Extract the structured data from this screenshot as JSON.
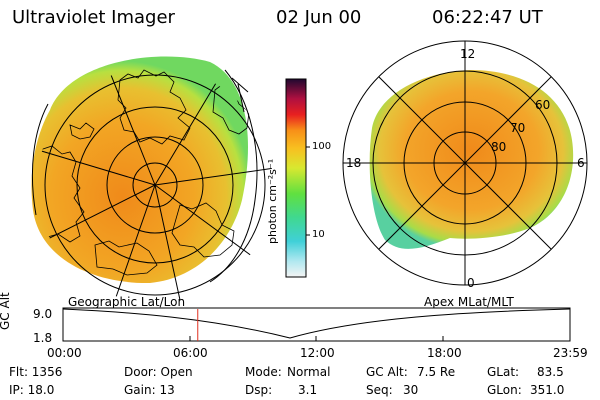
{
  "header": {
    "title": "Ultraviolet Imager",
    "date": "02 Jun 00",
    "time": "06:22:47 UT"
  },
  "left_image": {
    "caption": "Geographic Lat/Lon"
  },
  "right_image": {
    "caption": "Apex MLat/MLT",
    "mlt_labels": {
      "top": "12",
      "left": "18",
      "right": "6",
      "bottom": "0"
    },
    "lat_rings": [
      "60",
      "70",
      "80"
    ]
  },
  "colorbar": {
    "unit_label": "photon cm⁻²s⁻¹",
    "ticks": [
      "100",
      "10"
    ]
  },
  "altitude_plot": {
    "ylabel": "GC Alt",
    "yticks": [
      "9.0",
      "1.8"
    ],
    "xticks": [
      "00:00",
      "06:00",
      "12:00",
      "18:00",
      "23:59"
    ],
    "current_time_fraction": 0.2658
  },
  "info": {
    "flt": "Flt: 1356",
    "ip": "IP: 18.0",
    "door": "Door: Open",
    "gain": "Gain: 13",
    "mode_label": "Mode:",
    "mode_value": "Normal",
    "dsp_label": "Dsp:",
    "dsp_value": "3.1",
    "gcalt_label": "GC Alt:",
    "gcalt_value": "7.5 Re",
    "seq_label": "Seq:",
    "seq_value": "30",
    "glat_label": "GLat:",
    "glat_value": "83.5",
    "glon_label": "GLon:",
    "glon_value": "351.0"
  },
  "colors": {
    "aurora_core": "#f0a020",
    "aurora_edge": "#c8e040",
    "aurora_outer": "#60d060",
    "time_marker": "#e03020"
  }
}
